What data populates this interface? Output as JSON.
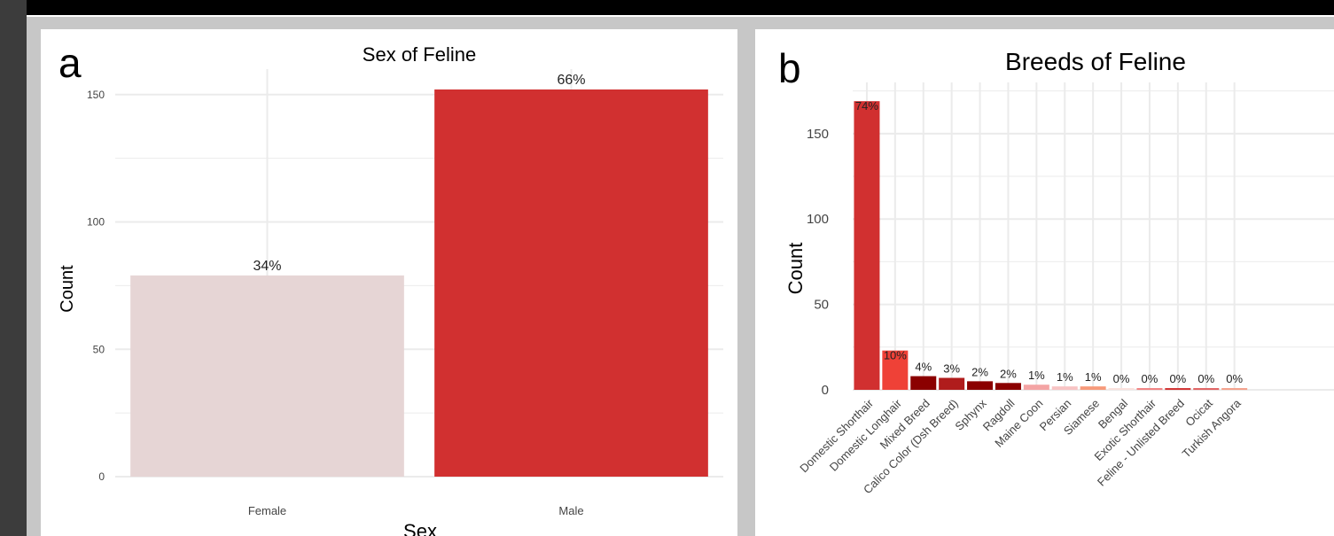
{
  "colors": {
    "page_bg": "#c7c7c7",
    "frame_top": "#000000",
    "frame_left": "#3c3c3c",
    "panel_bg": "#ffffff",
    "grid": "#ebebeb"
  },
  "chart_data": [
    {
      "panel_label": "a",
      "type": "bar",
      "title": "Sex of Feline",
      "xlabel": "Sex",
      "ylabel": "Count",
      "ylim": [
        0,
        160
      ],
      "yticks": [
        0,
        50,
        100,
        150
      ],
      "grid": true,
      "categories": [
        "Female",
        "Male"
      ],
      "values": [
        79,
        152
      ],
      "labels": [
        "34%",
        "66%"
      ],
      "colors": [
        "#e6d5d5",
        "#d13030"
      ]
    },
    {
      "panel_label": "b",
      "type": "bar",
      "title": "Breeds of Feline",
      "xlabel": "",
      "ylabel": "Count",
      "ylim": [
        0,
        180
      ],
      "yticks": [
        0,
        50,
        100,
        150
      ],
      "grid": true,
      "categories": [
        "Domestic Shorthair",
        "Domestic Longhair",
        "Mixed Breed",
        "Calico Color (Dsh Breed)",
        "Sphynx",
        "Ragdoll",
        "Maine Coon",
        "Persian",
        "Siamese",
        "Bengal",
        "Exotic Shorthair",
        "Feline - Unlisted Breed",
        "Ocicat",
        "Turkish Angora"
      ],
      "values": [
        169,
        23,
        8,
        7,
        5,
        4,
        3,
        2,
        2,
        1,
        1,
        1,
        1,
        1
      ],
      "labels": [
        "74%",
        "10%",
        "4%",
        "3%",
        "2%",
        "2%",
        "1%",
        "1%",
        "1%",
        "0%",
        "0%",
        "0%",
        "0%",
        "0%"
      ],
      "colors": [
        "#d13030",
        "#ef4137",
        "#8b0000",
        "#b01c1c",
        "#8b0000",
        "#8b0000",
        "#f4a4a4",
        "#f8c4c4",
        "#f79a7a",
        "#fbe0dc",
        "#f08080",
        "#d13030",
        "#e06060",
        "#f4a08a"
      ]
    }
  ]
}
